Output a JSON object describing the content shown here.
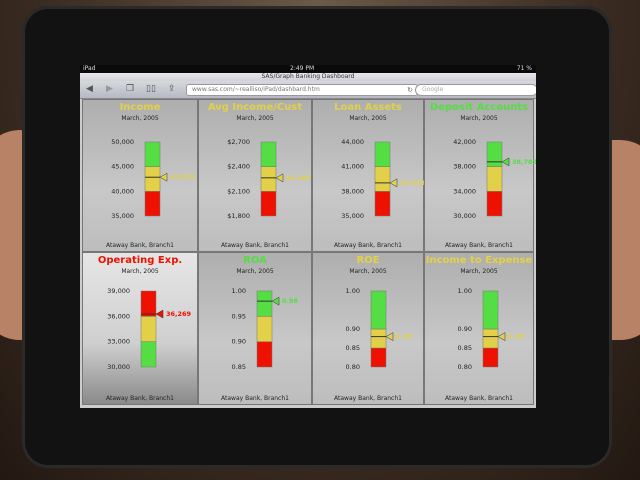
{
  "device": {
    "name": "iPad",
    "time": "2:49 PM",
    "battery": "71 %"
  },
  "browser": {
    "page_title": "SAS/Graph Banking Dashboard",
    "url": "www.sas.com/~realliso/iPad/dashbard.htm",
    "search_placeholder": "Google",
    "icons": [
      "back-icon",
      "forward-icon",
      "pages-icon",
      "bookmarks-icon",
      "share-icon",
      "reload-icon"
    ]
  },
  "colors": {
    "green": "#55dd44",
    "yellow": "#e2d148",
    "red": "#ee1100"
  },
  "panels": [
    {
      "title": "Income",
      "status": "yellow",
      "date": "March, 2005",
      "footer": "Ataway Bank, Branch1",
      "ticks": [
        "35,000",
        "40,000",
        "45,000",
        "50,000"
      ],
      "tick_values": [
        35000,
        40000,
        45000,
        50000
      ],
      "range": [
        35000,
        50000
      ],
      "bands": [
        {
          "from": 35000,
          "to": 40000,
          "color": "red"
        },
        {
          "from": 40000,
          "to": 45000,
          "color": "yellow"
        },
        {
          "from": 45000,
          "to": 50000,
          "color": "green"
        }
      ],
      "value": 42859,
      "value_label": "42,859"
    },
    {
      "title": "Avg Income/Cust",
      "status": "yellow",
      "date": "March, 2005",
      "footer": "Ataway Bank, Branch1",
      "ticks": [
        "$1,800",
        "$2,100",
        "$2,400",
        "$2,700"
      ],
      "tick_values": [
        1800,
        2100,
        2400,
        2700
      ],
      "range": [
        1800,
        2700
      ],
      "bands": [
        {
          "from": 1800,
          "to": 2100,
          "color": "red"
        },
        {
          "from": 2100,
          "to": 2400,
          "color": "yellow"
        },
        {
          "from": 2400,
          "to": 2700,
          "color": "green"
        }
      ],
      "value": 2264,
      "value_label": "$2,264"
    },
    {
      "title": "Loan Assets",
      "status": "yellow",
      "date": "March, 2005",
      "footer": "Ataway Bank, Branch1",
      "ticks": [
        "35,000",
        "38,000",
        "41,000",
        "44,000"
      ],
      "tick_values": [
        35000,
        38000,
        41000,
        44000
      ],
      "range": [
        35000,
        44000
      ],
      "bands": [
        {
          "from": 35000,
          "to": 38000,
          "color": "red"
        },
        {
          "from": 38000,
          "to": 41000,
          "color": "yellow"
        },
        {
          "from": 41000,
          "to": 44000,
          "color": "green"
        }
      ],
      "value": 39028,
      "value_label": "39,028"
    },
    {
      "title": "Deposit Accounts",
      "status": "green",
      "date": "March, 2005",
      "footer": "Ataway Bank, Branch1",
      "ticks": [
        "30,000",
        "34,000",
        "38,000",
        "42,000"
      ],
      "tick_values": [
        30000,
        34000,
        38000,
        42000
      ],
      "range": [
        30000,
        42000
      ],
      "bands": [
        {
          "from": 30000,
          "to": 34000,
          "color": "red"
        },
        {
          "from": 34000,
          "to": 38000,
          "color": "yellow"
        },
        {
          "from": 38000,
          "to": 42000,
          "color": "green"
        }
      ],
      "value": 38782,
      "value_label": "38,782"
    },
    {
      "title": "Operating Exp.",
      "status": "red",
      "date": "March, 2005",
      "footer": "Ataway Bank, Branch1",
      "highlight": true,
      "ticks": [
        "30,000",
        "33,000",
        "36,000",
        "39,000"
      ],
      "tick_values": [
        30000,
        33000,
        36000,
        39000
      ],
      "range": [
        30000,
        39000
      ],
      "bands": [
        {
          "from": 30000,
          "to": 33000,
          "color": "green"
        },
        {
          "from": 33000,
          "to": 36000,
          "color": "yellow"
        },
        {
          "from": 36000,
          "to": 39000,
          "color": "red"
        }
      ],
      "value": 36269,
      "value_label": "36,269"
    },
    {
      "title": "ROA",
      "status": "green",
      "date": "March, 2005",
      "footer": "Ataway Bank, Branch1",
      "ticks": [
        "0.85",
        "0.90",
        "0.95",
        "1.00"
      ],
      "tick_values": [
        0.85,
        0.9,
        0.95,
        1.0
      ],
      "range": [
        0.85,
        1.0
      ],
      "bands": [
        {
          "from": 0.85,
          "to": 0.9,
          "color": "red"
        },
        {
          "from": 0.9,
          "to": 0.95,
          "color": "yellow"
        },
        {
          "from": 0.95,
          "to": 1.0,
          "color": "green"
        }
      ],
      "value": 0.98,
      "value_label": "0.98"
    },
    {
      "title": "ROE",
      "status": "yellow",
      "date": "March, 2005",
      "footer": "Ataway Bank, Branch1",
      "ticks": [
        "0.80",
        "0.85",
        "0.90",
        "1.00"
      ],
      "tick_values": [
        0.8,
        0.85,
        0.9,
        1.0
      ],
      "range": [
        0.8,
        1.0
      ],
      "bands": [
        {
          "from": 0.8,
          "to": 0.85,
          "color": "red"
        },
        {
          "from": 0.85,
          "to": 0.9,
          "color": "yellow"
        },
        {
          "from": 0.9,
          "to": 1.0,
          "color": "green"
        }
      ],
      "value": 0.88,
      "value_label": "0.88"
    },
    {
      "title": "Income to Expense",
      "status": "yellow",
      "date": "March, 2005",
      "footer": "Ataway Bank, Branch1",
      "ticks": [
        "0.80",
        "0.85",
        "0.90",
        "1.00"
      ],
      "tick_values": [
        0.8,
        0.85,
        0.9,
        1.0
      ],
      "range": [
        0.8,
        1.0
      ],
      "bands": [
        {
          "from": 0.8,
          "to": 0.85,
          "color": "red"
        },
        {
          "from": 0.85,
          "to": 0.9,
          "color": "yellow"
        },
        {
          "from": 0.9,
          "to": 1.0,
          "color": "green"
        }
      ],
      "value": 0.88,
      "value_label": "0.88"
    }
  ]
}
